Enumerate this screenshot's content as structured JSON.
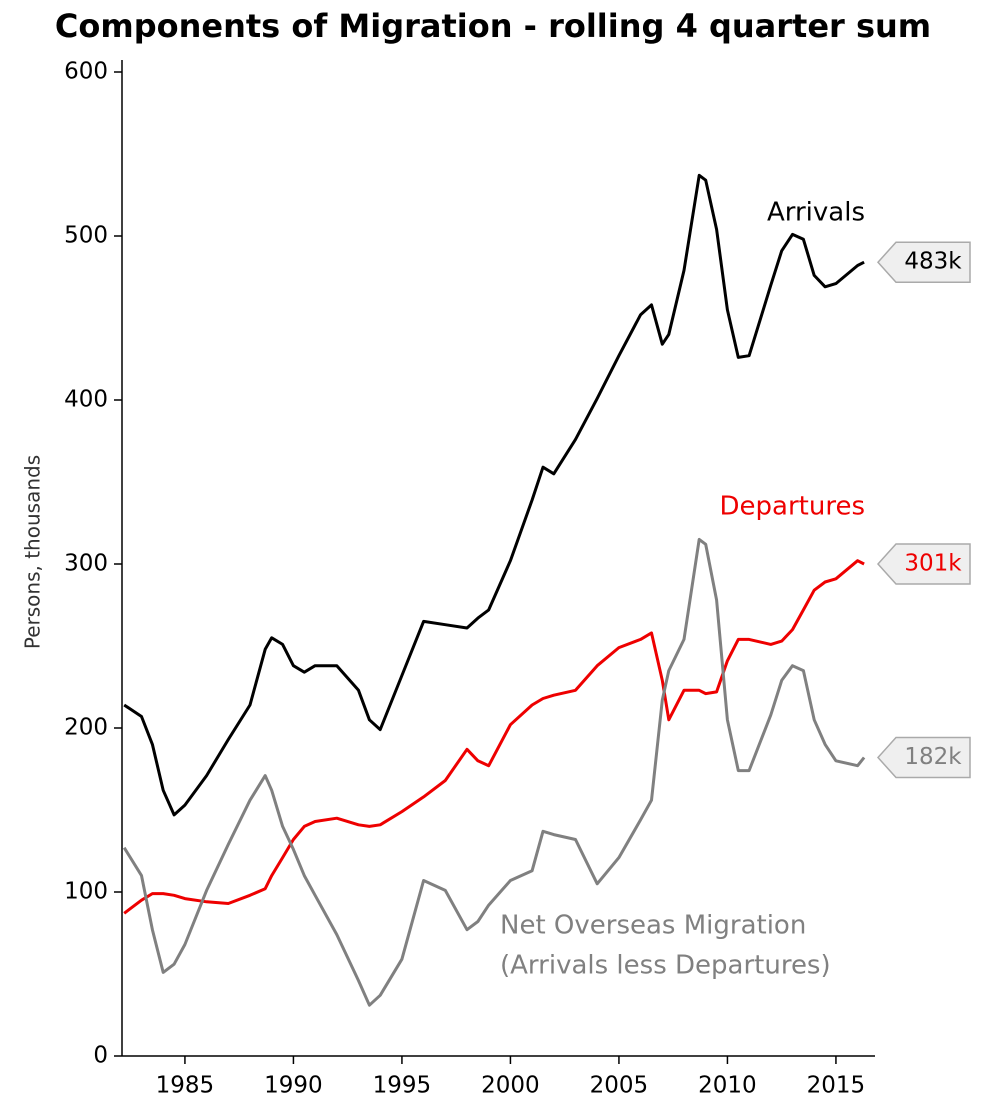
{
  "chart_data": {
    "type": "line",
    "title": "Components of Migration - rolling 4 quarter sum",
    "y_label": "Persons, thousands",
    "xlim": [
      1982.1,
      2016.8
    ],
    "xticks": [
      1985,
      1990,
      1995,
      2000,
      2005,
      2010,
      2015
    ],
    "ylim": [
      0,
      600
    ],
    "yticks": [
      0,
      100,
      200,
      300,
      400,
      500,
      600
    ],
    "grid": false,
    "x": [
      1982.2,
      1983,
      1983.5,
      1984,
      1984.5,
      1985,
      1986,
      1987,
      1988,
      1988.7,
      1989,
      1989.5,
      1990,
      1990.5,
      1991,
      1992,
      1993,
      1993.5,
      1994,
      1995,
      1996,
      1997,
      1998,
      1998.5,
      1999,
      2000,
      2001,
      2001.5,
      2002,
      2003,
      2004,
      2005,
      2006,
      2006.5,
      2007,
      2007.3,
      2008,
      2008.7,
      2009,
      2009.5,
      2010,
      2010.5,
      2011,
      2012,
      2012.5,
      2013,
      2013.5,
      2014,
      2014.5,
      2015,
      2016,
      2016.3
    ],
    "series": [
      {
        "name": "Arrivals",
        "label_lines": [
          "Arrivals"
        ],
        "color": "#000000",
        "end_label": "483k",
        "values": [
          214,
          207,
          190,
          162,
          147,
          153,
          171,
          193,
          214,
          248,
          255,
          251,
          238,
          234,
          238,
          238,
          223,
          205,
          199,
          232,
          265,
          263,
          261,
          267,
          272,
          302,
          339,
          359,
          355,
          376,
          401,
          427,
          452,
          458,
          434,
          440,
          479,
          537,
          534,
          504,
          455,
          426,
          427,
          470,
          491,
          501,
          498,
          476,
          469,
          471,
          482,
          484
        ]
      },
      {
        "name": "Departures",
        "label_lines": [
          "Departures"
        ],
        "color": "#ee0000",
        "end_label": "301k",
        "values": [
          87,
          95,
          99,
          99,
          98,
          96,
          94,
          93,
          98,
          102,
          110,
          121,
          132,
          140,
          143,
          145,
          141,
          140,
          141,
          149,
          158,
          168,
          187,
          180,
          177,
          202,
          214,
          218,
          220,
          223,
          238,
          249,
          254,
          258,
          229,
          205,
          223,
          223,
          221,
          222,
          241,
          254,
          254,
          251,
          253,
          260,
          272,
          284,
          289,
          291,
          302,
          300
        ]
      },
      {
        "name": "Net Overseas Migration",
        "label_lines": [
          "Net Overseas Migration",
          "(Arrivals less Departures)"
        ],
        "color": "#808080",
        "end_label": "182k",
        "values": [
          127,
          110,
          77,
          51,
          56,
          68,
          101,
          129,
          156,
          171,
          162,
          140,
          126,
          110,
          98,
          74,
          46,
          31,
          37,
          59,
          107,
          101,
          77,
          82,
          92,
          107,
          113,
          137,
          135,
          132,
          105,
          121,
          144,
          156,
          217,
          235,
          254,
          315,
          312,
          278,
          205,
          174,
          174,
          208,
          229,
          238,
          235,
          205,
          190,
          180,
          177,
          182
        ]
      }
    ]
  }
}
